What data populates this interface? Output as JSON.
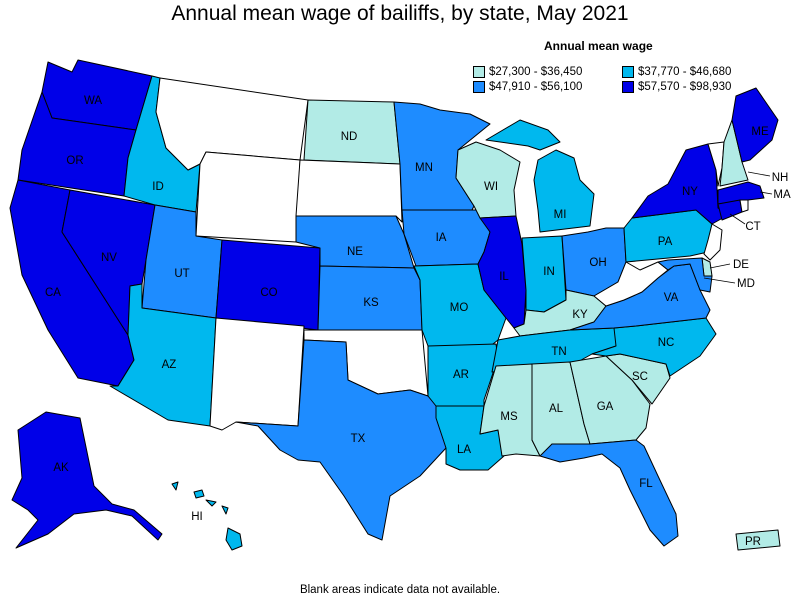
{
  "title": "Annual mean wage of bailiffs, by state, May 2021",
  "legend": {
    "title": "Annual mean wage",
    "bins": [
      {
        "label": "$27,300 - $36,450",
        "color": "#b2ebe6"
      },
      {
        "label": "$37,770 - $46,680",
        "color": "#00b8ee"
      },
      {
        "label": "$47,910 - $56,100",
        "color": "#1e8cff"
      },
      {
        "label": "$57,570 - $98,930",
        "color": "#0000e8"
      }
    ]
  },
  "no_data_color": "#ffffff",
  "footnote": "Blank areas indicate data not available.",
  "states": {
    "WA": 3,
    "OR": 3,
    "CA": 3,
    "NV": 3,
    "ID": 1,
    "MT": null,
    "WY": null,
    "UT": 2,
    "AZ": 1,
    "CO": 3,
    "NM": null,
    "ND": 0,
    "SD": null,
    "NE": 2,
    "KS": 2,
    "OK": null,
    "TX": 2,
    "MN": 2,
    "IA": 2,
    "MO": 1,
    "AR": 1,
    "LA": 1,
    "WI": 0,
    "IL": 3,
    "MS": 0,
    "MI": 1,
    "IN": 1,
    "KY": 0,
    "TN": 1,
    "AL": 0,
    "OH": 2,
    "GA": 0,
    "FL": 2,
    "SC": 0,
    "NC": 1,
    "VA": 2,
    "WV": null,
    "PA": 1,
    "NY": 3,
    "ME": 3,
    "VT": null,
    "NH": 0,
    "MA": 3,
    "CT": 3,
    "RI": null,
    "NJ": null,
    "DE": 0,
    "MD": 2,
    "AK": 3,
    "HI": 1,
    "PR": 0
  }
}
